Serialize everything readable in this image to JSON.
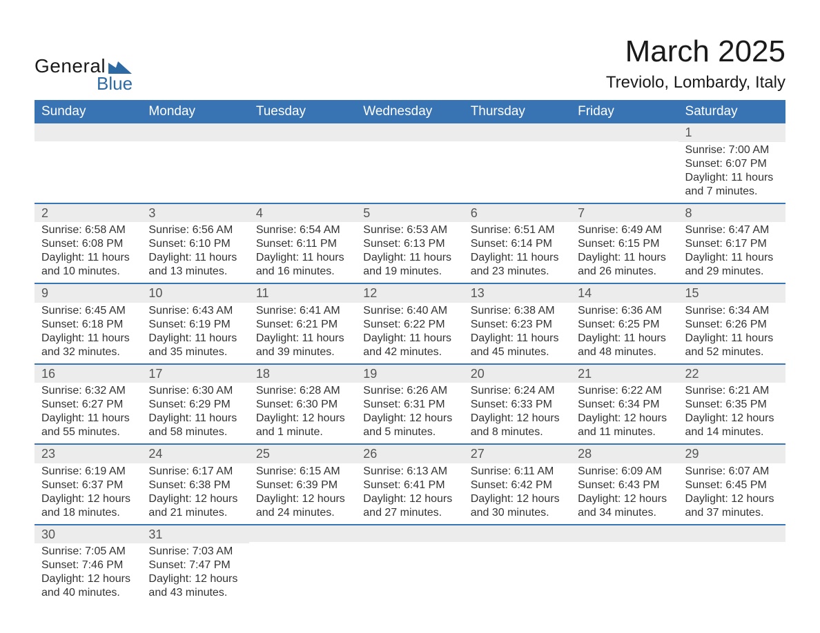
{
  "logo": {
    "text_general": "General",
    "text_blue": "Blue",
    "shape_color": "#2d6aa3"
  },
  "title": "March 2025",
  "location": "Treviolo, Lombardy, Italy",
  "colors": {
    "header_bg": "#3873b3",
    "header_text": "#ffffff",
    "daynum_bg": "#ececec",
    "daynum_text": "#555555",
    "body_text": "#333333",
    "row_border": "#3873b3"
  },
  "typography": {
    "title_fontsize": 44,
    "location_fontsize": 24,
    "header_fontsize": 19,
    "daynum_fontsize": 18,
    "body_fontsize": 16
  },
  "day_headers": [
    "Sunday",
    "Monday",
    "Tuesday",
    "Wednesday",
    "Thursday",
    "Friday",
    "Saturday"
  ],
  "weeks": [
    [
      null,
      null,
      null,
      null,
      null,
      null,
      {
        "n": "1",
        "sunrise": "Sunrise: 7:00 AM",
        "sunset": "Sunset: 6:07 PM",
        "daylight": "Daylight: 11 hours and 7 minutes."
      }
    ],
    [
      {
        "n": "2",
        "sunrise": "Sunrise: 6:58 AM",
        "sunset": "Sunset: 6:08 PM",
        "daylight": "Daylight: 11 hours and 10 minutes."
      },
      {
        "n": "3",
        "sunrise": "Sunrise: 6:56 AM",
        "sunset": "Sunset: 6:10 PM",
        "daylight": "Daylight: 11 hours and 13 minutes."
      },
      {
        "n": "4",
        "sunrise": "Sunrise: 6:54 AM",
        "sunset": "Sunset: 6:11 PM",
        "daylight": "Daylight: 11 hours and 16 minutes."
      },
      {
        "n": "5",
        "sunrise": "Sunrise: 6:53 AM",
        "sunset": "Sunset: 6:13 PM",
        "daylight": "Daylight: 11 hours and 19 minutes."
      },
      {
        "n": "6",
        "sunrise": "Sunrise: 6:51 AM",
        "sunset": "Sunset: 6:14 PM",
        "daylight": "Daylight: 11 hours and 23 minutes."
      },
      {
        "n": "7",
        "sunrise": "Sunrise: 6:49 AM",
        "sunset": "Sunset: 6:15 PM",
        "daylight": "Daylight: 11 hours and 26 minutes."
      },
      {
        "n": "8",
        "sunrise": "Sunrise: 6:47 AM",
        "sunset": "Sunset: 6:17 PM",
        "daylight": "Daylight: 11 hours and 29 minutes."
      }
    ],
    [
      {
        "n": "9",
        "sunrise": "Sunrise: 6:45 AM",
        "sunset": "Sunset: 6:18 PM",
        "daylight": "Daylight: 11 hours and 32 minutes."
      },
      {
        "n": "10",
        "sunrise": "Sunrise: 6:43 AM",
        "sunset": "Sunset: 6:19 PM",
        "daylight": "Daylight: 11 hours and 35 minutes."
      },
      {
        "n": "11",
        "sunrise": "Sunrise: 6:41 AM",
        "sunset": "Sunset: 6:21 PM",
        "daylight": "Daylight: 11 hours and 39 minutes."
      },
      {
        "n": "12",
        "sunrise": "Sunrise: 6:40 AM",
        "sunset": "Sunset: 6:22 PM",
        "daylight": "Daylight: 11 hours and 42 minutes."
      },
      {
        "n": "13",
        "sunrise": "Sunrise: 6:38 AM",
        "sunset": "Sunset: 6:23 PM",
        "daylight": "Daylight: 11 hours and 45 minutes."
      },
      {
        "n": "14",
        "sunrise": "Sunrise: 6:36 AM",
        "sunset": "Sunset: 6:25 PM",
        "daylight": "Daylight: 11 hours and 48 minutes."
      },
      {
        "n": "15",
        "sunrise": "Sunrise: 6:34 AM",
        "sunset": "Sunset: 6:26 PM",
        "daylight": "Daylight: 11 hours and 52 minutes."
      }
    ],
    [
      {
        "n": "16",
        "sunrise": "Sunrise: 6:32 AM",
        "sunset": "Sunset: 6:27 PM",
        "daylight": "Daylight: 11 hours and 55 minutes."
      },
      {
        "n": "17",
        "sunrise": "Sunrise: 6:30 AM",
        "sunset": "Sunset: 6:29 PM",
        "daylight": "Daylight: 11 hours and 58 minutes."
      },
      {
        "n": "18",
        "sunrise": "Sunrise: 6:28 AM",
        "sunset": "Sunset: 6:30 PM",
        "daylight": "Daylight: 12 hours and 1 minute."
      },
      {
        "n": "19",
        "sunrise": "Sunrise: 6:26 AM",
        "sunset": "Sunset: 6:31 PM",
        "daylight": "Daylight: 12 hours and 5 minutes."
      },
      {
        "n": "20",
        "sunrise": "Sunrise: 6:24 AM",
        "sunset": "Sunset: 6:33 PM",
        "daylight": "Daylight: 12 hours and 8 minutes."
      },
      {
        "n": "21",
        "sunrise": "Sunrise: 6:22 AM",
        "sunset": "Sunset: 6:34 PM",
        "daylight": "Daylight: 12 hours and 11 minutes."
      },
      {
        "n": "22",
        "sunrise": "Sunrise: 6:21 AM",
        "sunset": "Sunset: 6:35 PM",
        "daylight": "Daylight: 12 hours and 14 minutes."
      }
    ],
    [
      {
        "n": "23",
        "sunrise": "Sunrise: 6:19 AM",
        "sunset": "Sunset: 6:37 PM",
        "daylight": "Daylight: 12 hours and 18 minutes."
      },
      {
        "n": "24",
        "sunrise": "Sunrise: 6:17 AM",
        "sunset": "Sunset: 6:38 PM",
        "daylight": "Daylight: 12 hours and 21 minutes."
      },
      {
        "n": "25",
        "sunrise": "Sunrise: 6:15 AM",
        "sunset": "Sunset: 6:39 PM",
        "daylight": "Daylight: 12 hours and 24 minutes."
      },
      {
        "n": "26",
        "sunrise": "Sunrise: 6:13 AM",
        "sunset": "Sunset: 6:41 PM",
        "daylight": "Daylight: 12 hours and 27 minutes."
      },
      {
        "n": "27",
        "sunrise": "Sunrise: 6:11 AM",
        "sunset": "Sunset: 6:42 PM",
        "daylight": "Daylight: 12 hours and 30 minutes."
      },
      {
        "n": "28",
        "sunrise": "Sunrise: 6:09 AM",
        "sunset": "Sunset: 6:43 PM",
        "daylight": "Daylight: 12 hours and 34 minutes."
      },
      {
        "n": "29",
        "sunrise": "Sunrise: 6:07 AM",
        "sunset": "Sunset: 6:45 PM",
        "daylight": "Daylight: 12 hours and 37 minutes."
      }
    ],
    [
      {
        "n": "30",
        "sunrise": "Sunrise: 7:05 AM",
        "sunset": "Sunset: 7:46 PM",
        "daylight": "Daylight: 12 hours and 40 minutes."
      },
      {
        "n": "31",
        "sunrise": "Sunrise: 7:03 AM",
        "sunset": "Sunset: 7:47 PM",
        "daylight": "Daylight: 12 hours and 43 minutes."
      },
      null,
      null,
      null,
      null,
      null
    ]
  ]
}
